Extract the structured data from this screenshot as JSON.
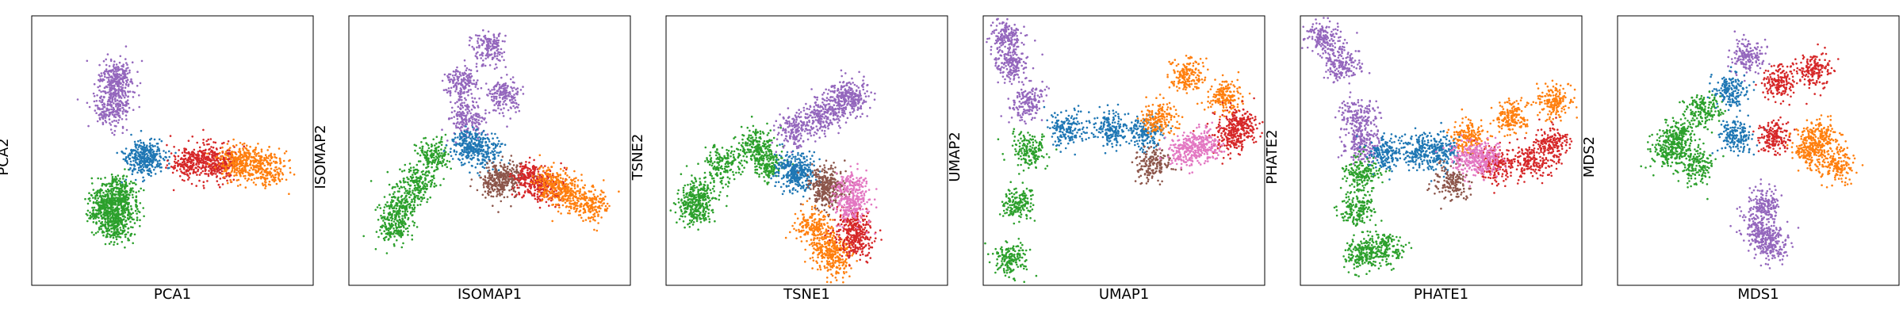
{
  "figure": {
    "panels": [
      {
        "id": "pca",
        "xlabel": "PCA1",
        "ylabel": "PCA2"
      },
      {
        "id": "isomap",
        "xlabel": "ISOMAP1",
        "ylabel": "ISOMAP2"
      },
      {
        "id": "tsne",
        "xlabel": "TSNE1",
        "ylabel": "TSNE2"
      },
      {
        "id": "umap",
        "xlabel": "UMAP1",
        "ylabel": "UMAP2"
      },
      {
        "id": "phate",
        "xlabel": "PHATE1",
        "ylabel": "PHATE2"
      },
      {
        "id": "mds",
        "xlabel": "MDS1",
        "ylabel": "MDS2"
      }
    ]
  },
  "colors": {
    "blue": "#1f77b4",
    "orange": "#ff7f0e",
    "green": "#2ca02c",
    "red": "#d62728",
    "purple": "#9467bd",
    "brown": "#8c564b",
    "pink": "#e377c2"
  },
  "chart_data": [
    {
      "type": "scatter",
      "xlabel": "PCA1",
      "ylabel": "PCA2",
      "xlim": [
        0,
        1
      ],
      "ylim": [
        0,
        1
      ],
      "grid": false,
      "ticks": false,
      "legend": "none",
      "series": [
        {
          "color": "green",
          "points": [
            [
              0.3,
              0.35
            ],
            [
              0.28,
              0.25
            ],
            [
              0.32,
              0.3
            ],
            [
              0.25,
              0.3
            ],
            [
              0.3,
              0.22
            ]
          ]
        },
        {
          "color": "purple",
          "points": [
            [
              0.3,
              0.72
            ],
            [
              0.3,
              0.78
            ],
            [
              0.28,
              0.65
            ]
          ]
        },
        {
          "color": "blue",
          "points": [
            [
              0.42,
              0.47
            ],
            [
              0.38,
              0.48
            ]
          ]
        },
        {
          "color": "red",
          "points": [
            [
              0.62,
              0.47
            ],
            [
              0.55,
              0.46
            ],
            [
              0.68,
              0.45
            ]
          ]
        },
        {
          "color": "orange",
          "points": [
            [
              0.78,
              0.45
            ],
            [
              0.84,
              0.43
            ],
            [
              0.72,
              0.46
            ]
          ]
        }
      ]
    },
    {
      "type": "scatter",
      "xlabel": "ISOMAP1",
      "ylabel": "ISOMAP2",
      "xlim": [
        0,
        1
      ],
      "ylim": [
        0,
        1
      ],
      "grid": false,
      "ticks": false,
      "legend": "none",
      "series": [
        {
          "color": "green",
          "points": [
            [
              0.18,
              0.3
            ],
            [
              0.24,
              0.38
            ],
            [
              0.3,
              0.48
            ],
            [
              0.16,
              0.22
            ]
          ]
        },
        {
          "color": "purple",
          "points": [
            [
              0.4,
              0.75
            ],
            [
              0.5,
              0.88
            ],
            [
              0.42,
              0.62
            ],
            [
              0.55,
              0.7
            ]
          ]
        },
        {
          "color": "blue",
          "points": [
            [
              0.42,
              0.52
            ],
            [
              0.48,
              0.5
            ]
          ]
        },
        {
          "color": "brown",
          "points": [
            [
              0.52,
              0.38
            ],
            [
              0.56,
              0.4
            ]
          ]
        },
        {
          "color": "red",
          "points": [
            [
              0.64,
              0.4
            ],
            [
              0.7,
              0.36
            ]
          ]
        },
        {
          "color": "orange",
          "points": [
            [
              0.78,
              0.34
            ],
            [
              0.86,
              0.3
            ],
            [
              0.72,
              0.38
            ]
          ]
        }
      ]
    },
    {
      "type": "scatter",
      "xlabel": "TSNE1",
      "ylabel": "TSNE2",
      "xlim": [
        0,
        1
      ],
      "ylim": [
        0,
        1
      ],
      "grid": false,
      "ticks": false,
      "legend": "none",
      "series": [
        {
          "color": "green",
          "points": [
            [
              0.12,
              0.33
            ],
            [
              0.2,
              0.45
            ],
            [
              0.32,
              0.52
            ],
            [
              0.36,
              0.45
            ],
            [
              0.1,
              0.28
            ]
          ]
        },
        {
          "color": "purple",
          "points": [
            [
              0.46,
              0.58
            ],
            [
              0.55,
              0.63
            ],
            [
              0.62,
              0.68
            ],
            [
              0.66,
              0.7
            ]
          ]
        },
        {
          "color": "blue",
          "points": [
            [
              0.45,
              0.43
            ],
            [
              0.48,
              0.41
            ]
          ]
        },
        {
          "color": "brown",
          "points": [
            [
              0.56,
              0.38
            ],
            [
              0.58,
              0.35
            ]
          ]
        },
        {
          "color": "orange",
          "points": [
            [
              0.52,
              0.22
            ],
            [
              0.58,
              0.14
            ],
            [
              0.6,
              0.1
            ]
          ]
        },
        {
          "color": "red",
          "points": [
            [
              0.66,
              0.22
            ],
            [
              0.68,
              0.16
            ]
          ]
        },
        {
          "color": "pink",
          "points": [
            [
              0.66,
              0.36
            ],
            [
              0.66,
              0.3
            ]
          ]
        }
      ]
    },
    {
      "type": "scatter",
      "xlabel": "UMAP1",
      "ylabel": "UMAP2",
      "xlim": [
        0,
        1
      ],
      "ylim": [
        0,
        1
      ],
      "grid": false,
      "ticks": false,
      "legend": "none",
      "series": [
        {
          "color": "purple",
          "points": [
            [
              0.08,
              0.92
            ],
            [
              0.1,
              0.82
            ],
            [
              0.16,
              0.68
            ]
          ]
        },
        {
          "color": "green",
          "points": [
            [
              0.16,
              0.5
            ],
            [
              0.12,
              0.3
            ],
            [
              0.1,
              0.1
            ]
          ]
        },
        {
          "color": "blue",
          "points": [
            [
              0.3,
              0.58
            ],
            [
              0.45,
              0.58
            ],
            [
              0.58,
              0.57
            ]
          ]
        },
        {
          "color": "orange",
          "points": [
            [
              0.62,
              0.62
            ],
            [
              0.72,
              0.78
            ],
            [
              0.86,
              0.7
            ]
          ]
        },
        {
          "color": "red",
          "points": [
            [
              0.92,
              0.6
            ],
            [
              0.88,
              0.55
            ]
          ]
        },
        {
          "color": "brown",
          "points": [
            [
              0.6,
              0.45
            ]
          ]
        },
        {
          "color": "pink",
          "points": [
            [
              0.72,
              0.5
            ],
            [
              0.78,
              0.52
            ]
          ]
        }
      ]
    },
    {
      "type": "scatter",
      "xlabel": "PHATE1",
      "ylabel": "PHATE2",
      "xlim": [
        0,
        1
      ],
      "ylim": [
        0,
        1
      ],
      "grid": false,
      "ticks": false,
      "legend": "none",
      "series": [
        {
          "color": "purple",
          "points": [
            [
              0.08,
              0.92
            ],
            [
              0.15,
              0.82
            ],
            [
              0.2,
              0.62
            ],
            [
              0.22,
              0.52
            ]
          ]
        },
        {
          "color": "green",
          "points": [
            [
              0.22,
              0.42
            ],
            [
              0.2,
              0.28
            ],
            [
              0.22,
              0.12
            ],
            [
              0.3,
              0.14
            ]
          ]
        },
        {
          "color": "blue",
          "points": [
            [
              0.3,
              0.49
            ],
            [
              0.42,
              0.5
            ],
            [
              0.5,
              0.5
            ]
          ]
        },
        {
          "color": "orange",
          "points": [
            [
              0.6,
              0.55
            ],
            [
              0.75,
              0.62
            ],
            [
              0.9,
              0.68
            ]
          ]
        },
        {
          "color": "red",
          "points": [
            [
              0.7,
              0.45
            ],
            [
              0.82,
              0.46
            ],
            [
              0.9,
              0.52
            ]
          ]
        },
        {
          "color": "pink",
          "points": [
            [
              0.6,
              0.48
            ],
            [
              0.66,
              0.47
            ]
          ]
        },
        {
          "color": "brown",
          "points": [
            [
              0.54,
              0.38
            ]
          ]
        }
      ]
    },
    {
      "type": "scatter",
      "xlabel": "MDS1",
      "ylabel": "MDS2",
      "xlim": [
        0,
        1
      ],
      "ylim": [
        0,
        1
      ],
      "grid": false,
      "ticks": false,
      "legend": "none",
      "series": [
        {
          "color": "green",
          "points": [
            [
              0.22,
              0.55
            ],
            [
              0.28,
              0.45
            ],
            [
              0.3,
              0.65
            ],
            [
              0.18,
              0.5
            ]
          ]
        },
        {
          "color": "purple",
          "points": [
            [
              0.5,
              0.2
            ],
            [
              0.52,
              0.3
            ],
            [
              0.46,
              0.85
            ],
            [
              0.55,
              0.15
            ]
          ]
        },
        {
          "color": "blue",
          "points": [
            [
              0.4,
              0.72
            ],
            [
              0.42,
              0.55
            ]
          ]
        },
        {
          "color": "red",
          "points": [
            [
              0.58,
              0.75
            ],
            [
              0.7,
              0.8
            ],
            [
              0.55,
              0.55
            ]
          ]
        },
        {
          "color": "orange",
          "points": [
            [
              0.72,
              0.55
            ],
            [
              0.78,
              0.45
            ],
            [
              0.68,
              0.5
            ]
          ]
        }
      ]
    }
  ]
}
